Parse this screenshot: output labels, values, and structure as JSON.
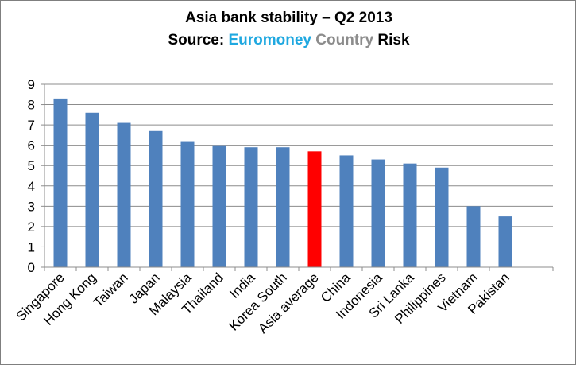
{
  "chart_data": {
    "type": "bar",
    "title": "Asia bank stability – Q2 2013",
    "subtitle": {
      "prefix": "Source: ",
      "part1": "Euromoney",
      "part2": "Country",
      "part3": "Risk"
    },
    "categories": [
      "Singapore",
      "Hong Kong",
      "Taiwan",
      "Japan",
      "Malaysia",
      "Thailand",
      "India",
      "Korea South",
      "Asia average",
      "China",
      "Indonesia",
      "Sri Lanka",
      "Philippines",
      "Vietnam",
      "Pakistan"
    ],
    "values": [
      8.3,
      7.6,
      7.1,
      6.7,
      6.2,
      6.0,
      5.9,
      5.9,
      5.7,
      5.5,
      5.3,
      5.1,
      4.9,
      3.0,
      2.5
    ],
    "highlight_category": "Asia average",
    "ylim": [
      0,
      9
    ],
    "yticks": [
      "0",
      "1",
      "2",
      "3",
      "4",
      "5",
      "6",
      "7",
      "8",
      "9"
    ],
    "grid": true,
    "legend": "none",
    "xlabel": "",
    "ylabel": "",
    "colors": {
      "bar": "#4f81bd",
      "highlight": "#ff0000",
      "grid": "#8c8c8c",
      "subtitle_euromoney": "#1fa8e0",
      "subtitle_country": "#8c8c8c"
    }
  }
}
